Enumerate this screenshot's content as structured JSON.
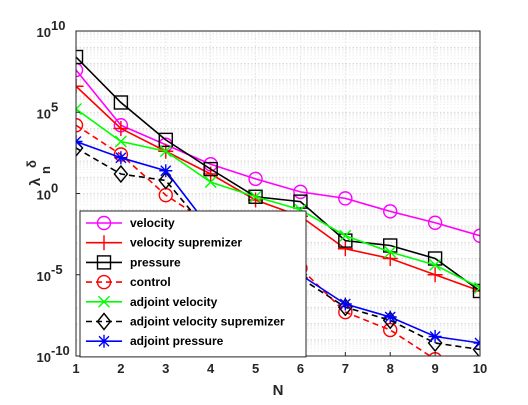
{
  "chart_data": {
    "type": "line",
    "title": "",
    "xlabel": "N",
    "ylabel": "λ",
    "ylabel_sub": "n",
    "ylabel_sup": "δ",
    "xlim": [
      1,
      10
    ],
    "ylim_exp": [
      -10,
      10
    ],
    "yscale": "log",
    "grid": true,
    "legend_position": "bottom-left",
    "x": [
      1,
      2,
      3,
      4,
      5,
      6,
      7,
      8,
      9,
      10
    ],
    "x_tick_labels": [
      "1",
      "2",
      "3",
      "4",
      "5",
      "6",
      "7",
      "8",
      "9",
      "10"
    ],
    "y_tick_labels": [
      {
        "exp": -10,
        "base": "10",
        "power": "-10"
      },
      {
        "exp": -5,
        "base": "10",
        "power": "-5"
      },
      {
        "exp": 0,
        "base": "10",
        "power": "0"
      },
      {
        "exp": 5,
        "base": "10",
        "power": "5"
      },
      {
        "exp": 10,
        "base": "10",
        "power": "10"
      }
    ],
    "series": [
      {
        "name": "velocity",
        "color": "#ff00ff",
        "marker": "circle",
        "dash": "solid",
        "log10_values": [
          7.6,
          4.2,
          3.0,
          1.8,
          0.9,
          0.1,
          -0.3,
          -1.1,
          -1.8,
          -2.6
        ]
      },
      {
        "name": "velocity supremizer",
        "color": "#ff0000",
        "marker": "plus",
        "dash": "solid",
        "log10_values": [
          6.6,
          4.0,
          2.6,
          1.2,
          -0.4,
          -1.4,
          -3.4,
          -4.0,
          -5.0,
          -6.0
        ]
      },
      {
        "name": "pressure",
        "color": "#000000",
        "marker": "square",
        "dash": "solid",
        "log10_values": [
          8.4,
          5.6,
          3.3,
          1.5,
          -0.2,
          -0.5,
          -2.9,
          -3.2,
          -4.0,
          -6.0
        ]
      },
      {
        "name": "control",
        "color": "#ff0000",
        "marker": "circle",
        "dash": "dashed",
        "log10_values": [
          4.2,
          2.4,
          -0.1,
          -1.9,
          -3.0,
          -4.6,
          -7.3,
          -8.4,
          -10.2,
          -10.8
        ]
      },
      {
        "name": "adjoint velocity",
        "color": "#00ff00",
        "marker": "x",
        "dash": "solid",
        "log10_values": [
          5.2,
          3.2,
          2.6,
          0.7,
          -0.2,
          -1.0,
          -2.6,
          -3.6,
          -4.4,
          -5.8
        ]
      },
      {
        "name": "adjoint velocity supremizer",
        "color": "#000000",
        "marker": "diamond",
        "dash": "dashed",
        "log10_values": [
          2.8,
          1.2,
          0.8,
          -2.5,
          -3.2,
          -5.2,
          -7.0,
          -7.8,
          -9.2,
          -9.6
        ]
      },
      {
        "name": "adjoint pressure",
        "color": "#0000ff",
        "marker": "asterisk",
        "dash": "solid",
        "log10_values": [
          3.2,
          2.2,
          1.4,
          -2.2,
          -3.0,
          -5.0,
          -6.8,
          -7.6,
          -8.8,
          -9.2
        ]
      }
    ]
  }
}
